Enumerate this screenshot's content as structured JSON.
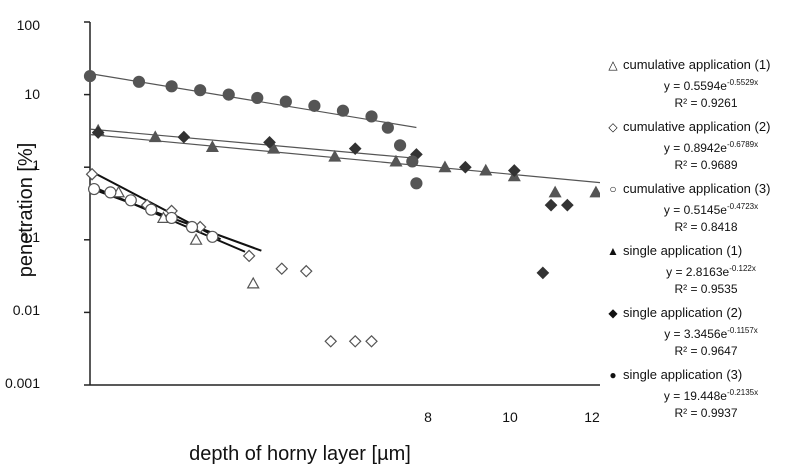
{
  "chart_data": {
    "type": "scatter",
    "title": "",
    "xlabel": "depth of horny layer [µm]",
    "ylabel": "penetration [%]",
    "x_ticks": [
      "8",
      "10",
      "12"
    ],
    "y_ticks": [
      "100",
      "10",
      "1",
      "0.1",
      "0.01",
      "0.001"
    ],
    "xlim": [
      0,
      12.5
    ],
    "ylim": [
      0.001,
      100
    ],
    "y_scale": "log",
    "grid": false,
    "legend_position": "right",
    "series": [
      {
        "name": "cumulative application (1)",
        "marker": "open-triangle",
        "color": "#555555",
        "equation": "y = 0.5594e",
        "exponent": "-0.5529x",
        "r2": "R² = 0.9261",
        "a": 0.5594,
        "b": -0.5529,
        "fit_range": [
          0,
          3.8
        ],
        "points": [
          [
            0.7,
            0.45
          ],
          [
            1.8,
            0.2
          ],
          [
            2.6,
            0.1
          ],
          [
            4.0,
            0.025
          ]
        ]
      },
      {
        "name": "cumulative application (2)",
        "marker": "open-diamond",
        "color": "#555555",
        "equation": "y = 0.8942e",
        "exponent": "-0.6789x",
        "r2": "R² = 0.9689",
        "a": 0.8942,
        "b": -0.6789,
        "fit_range": [
          0,
          3.2
        ],
        "points": [
          [
            0.05,
            0.8
          ],
          [
            1.4,
            0.3
          ],
          [
            2.0,
            0.25
          ],
          [
            2.7,
            0.15
          ],
          [
            3.9,
            0.06
          ],
          [
            4.7,
            0.04
          ],
          [
            5.3,
            0.037
          ],
          [
            5.9,
            0.004
          ],
          [
            6.5,
            0.004
          ],
          [
            6.9,
            0.004
          ]
        ]
      },
      {
        "name": "cumulative application (3)",
        "marker": "open-circle",
        "color": "#555555",
        "equation": "y = 0.5145e",
        "exponent": "-0.4723x",
        "r2": "R² = 0.8418",
        "a": 0.5145,
        "b": -0.4723,
        "fit_range": [
          0,
          4.2
        ],
        "points": [
          [
            0.1,
            0.5
          ],
          [
            0.5,
            0.45
          ],
          [
            1.0,
            0.35
          ],
          [
            1.5,
            0.26
          ],
          [
            2.0,
            0.2
          ],
          [
            2.5,
            0.15
          ],
          [
            3.0,
            0.11
          ]
        ]
      },
      {
        "name": "single application (1)",
        "marker": "filled-triangle",
        "color": "#555555",
        "equation": "y = 2.8163e",
        "exponent": "-0.122x",
        "r2": "R² = 0.9535",
        "a": 2.8163,
        "b": -0.122,
        "fit_range": [
          0,
          12.5
        ],
        "points": [
          [
            0.2,
            3.2
          ],
          [
            1.6,
            2.6
          ],
          [
            3.0,
            1.9
          ],
          [
            4.5,
            1.8
          ],
          [
            6.0,
            1.4
          ],
          [
            7.5,
            1.2
          ],
          [
            8.7,
            1.0
          ],
          [
            9.7,
            0.9
          ],
          [
            10.4,
            0.75
          ],
          [
            11.4,
            0.45
          ],
          [
            12.4,
            0.45
          ]
        ]
      },
      {
        "name": "single application (2)",
        "marker": "filled-diamond",
        "color": "#333333",
        "equation": "y = 3.3456e",
        "exponent": "-0.1157x",
        "r2": "R² = 0.9647",
        "a": 3.3456,
        "b": -0.1157,
        "fit_range": [
          0,
          8.0
        ],
        "points": [
          [
            0.2,
            3.0
          ],
          [
            2.3,
            2.6
          ],
          [
            4.4,
            2.2
          ],
          [
            6.5,
            1.8
          ],
          [
            8.0,
            1.5
          ],
          [
            9.2,
            1.0
          ],
          [
            10.4,
            0.9
          ],
          [
            11.3,
            0.3
          ],
          [
            11.7,
            0.3
          ],
          [
            11.1,
            0.035
          ]
        ]
      },
      {
        "name": "single application (3)",
        "marker": "filled-circle",
        "color": "#555555",
        "equation": "y = 19.448e",
        "exponent": "-0.2135x",
        "r2": "R² = 0.9937",
        "a": 19.448,
        "b": -0.2135,
        "fit_range": [
          0,
          8.0
        ],
        "points": [
          [
            0.0,
            18.0
          ],
          [
            1.2,
            15.0
          ],
          [
            2.0,
            13.0
          ],
          [
            2.7,
            11.5
          ],
          [
            3.4,
            10.0
          ],
          [
            4.1,
            9.0
          ],
          [
            4.8,
            8.0
          ],
          [
            5.5,
            7.0
          ],
          [
            6.2,
            6.0
          ],
          [
            6.9,
            5.0
          ],
          [
            7.3,
            3.5
          ],
          [
            7.6,
            2.0
          ],
          [
            7.9,
            1.2
          ],
          [
            8.0,
            0.6
          ]
        ]
      }
    ]
  }
}
